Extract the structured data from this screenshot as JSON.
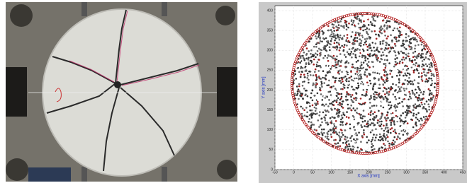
{
  "chart_data": {
    "type": "scatter",
    "xlabel": "X axis [mm]",
    "ylabel": "Y axis [mm]",
    "xlim": [
      -50,
      450
    ],
    "ylim": [
      0,
      400
    ],
    "xticks": [
      -50,
      0,
      50,
      100,
      150,
      200,
      250,
      300,
      350,
      400,
      450
    ],
    "yticks": [
      0,
      50,
      100,
      150,
      200,
      250,
      300,
      350,
      400
    ],
    "grid": true
  }
}
